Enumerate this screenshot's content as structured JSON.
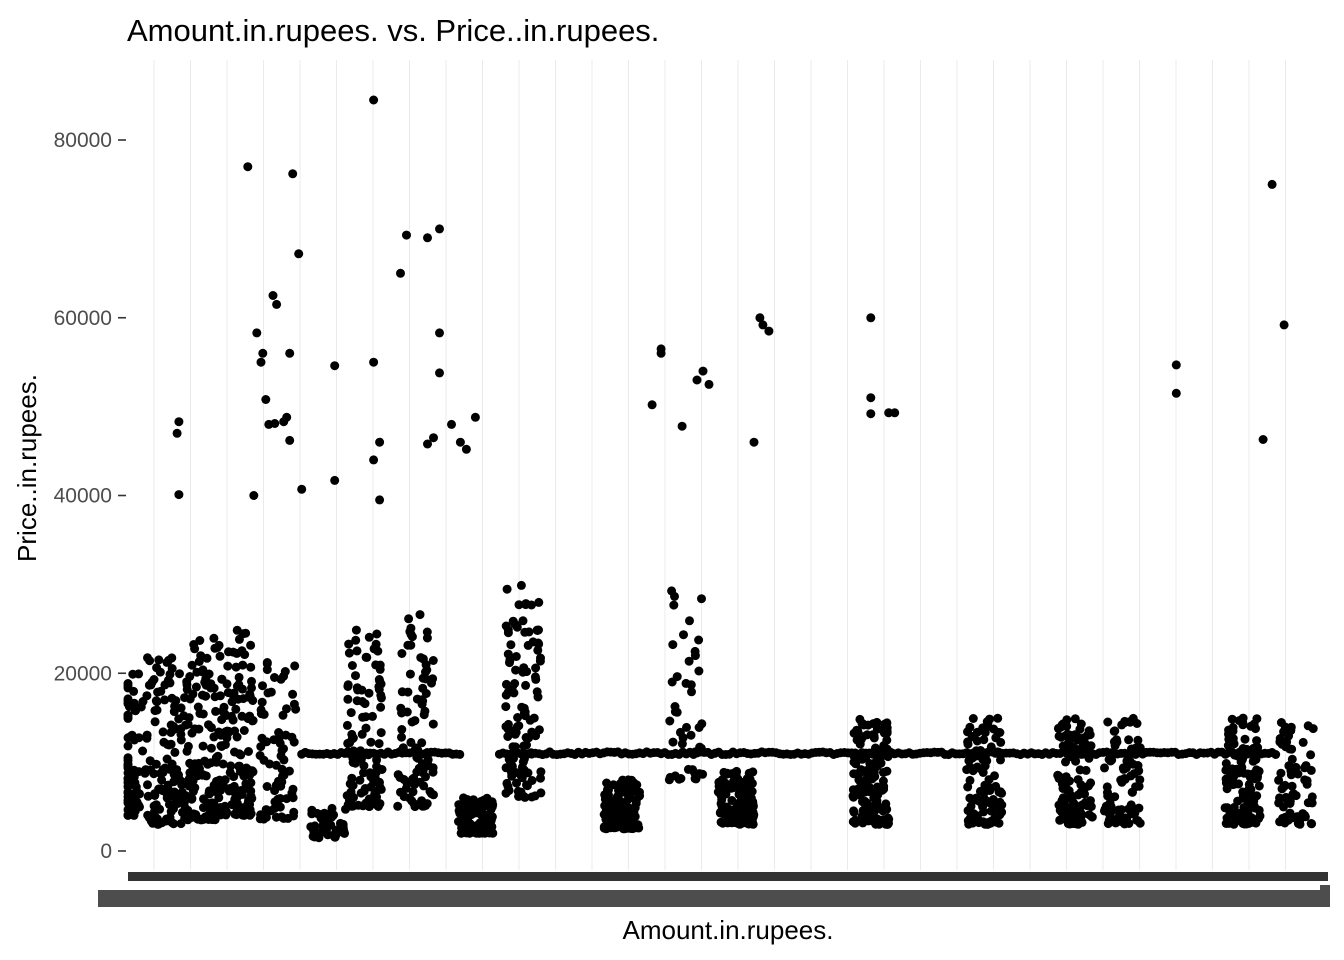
{
  "chart_data": {
    "type": "scatter",
    "title": "Amount.in.rupees. vs. Price..in.rupees.",
    "xlabel": "Amount.in.rupees.",
    "ylabel": "Price..in.rupees.",
    "x_scale": "categorical",
    "ylim": [
      -2500,
      88500
    ],
    "yticks": [
      0,
      20000,
      40000,
      60000,
      80000
    ],
    "ytick_labels": [
      "0",
      "20000",
      "40000",
      "60000",
      "80000"
    ],
    "grid": "vertical major lines only",
    "legend": "none",
    "point_color": "#000000",
    "bulk_points": [
      {
        "x": 0.0,
        "y_min": 4000,
        "y_max": 20000,
        "count": 70
      },
      {
        "x": 0.06,
        "y_min": 3000,
        "y_max": 22000,
        "count": 110
      },
      {
        "x": 0.12,
        "y_min": 3500,
        "y_max": 24000,
        "count": 120
      },
      {
        "x": 0.18,
        "y_min": 4000,
        "y_max": 26000,
        "count": 130
      },
      {
        "x": 0.25,
        "y_min": 3500,
        "y_max": 22000,
        "count": 70
      },
      {
        "x": 0.335,
        "y_min": 1500,
        "y_max": 5000,
        "count": 45
      },
      {
        "x": 0.395,
        "y_min": 5000,
        "y_max": 25000,
        "count": 110
      },
      {
        "x": 0.48,
        "y_min": 5000,
        "y_max": 28000,
        "count": 90
      },
      {
        "x": 0.58,
        "y_min": 2000,
        "y_max": 6000,
        "count": 120
      },
      {
        "x": 0.66,
        "y_min": 6000,
        "y_max": 30000,
        "count": 110
      },
      {
        "x": 0.825,
        "y_min": 2500,
        "y_max": 8000,
        "count": 130
      },
      {
        "x": 0.93,
        "y_min": 8000,
        "y_max": 30000,
        "count": 45
      },
      {
        "x": 1.015,
        "y_min": 3000,
        "y_max": 9000,
        "count": 130
      },
      {
        "x": 1.24,
        "y_min": 3000,
        "y_max": 15000,
        "count": 150
      },
      {
        "x": 1.43,
        "y_min": 3000,
        "y_max": 15000,
        "count": 110
      },
      {
        "x": 1.58,
        "y_min": 3000,
        "y_max": 15000,
        "count": 110
      },
      {
        "x": 1.66,
        "y_min": 3000,
        "y_max": 15000,
        "count": 80
      },
      {
        "x": 1.86,
        "y_min": 3000,
        "y_max": 15000,
        "count": 110
      },
      {
        "x": 1.95,
        "y_min": 3000,
        "y_max": 15000,
        "count": 70
      }
    ],
    "horizontal_band": {
      "y": 11000,
      "x_ranges": [
        [
          0.29,
          0.56
        ],
        [
          0.62,
          1.92
        ]
      ]
    },
    "notable_points": [
      {
        "x": 0.41,
        "y": 84500
      },
      {
        "x": 0.2,
        "y": 77000
      },
      {
        "x": 0.275,
        "y": 76200
      },
      {
        "x": 1.91,
        "y": 75000
      },
      {
        "x": 0.52,
        "y": 70000
      },
      {
        "x": 0.465,
        "y": 69300
      },
      {
        "x": 0.5,
        "y": 69000
      },
      {
        "x": 0.285,
        "y": 67200
      },
      {
        "x": 0.455,
        "y": 65000
      },
      {
        "x": 0.242,
        "y": 62500
      },
      {
        "x": 0.248,
        "y": 61500
      },
      {
        "x": 1.24,
        "y": 60000
      },
      {
        "x": 1.055,
        "y": 60000
      },
      {
        "x": 1.06,
        "y": 59200
      },
      {
        "x": 1.93,
        "y": 59200
      },
      {
        "x": 1.07,
        "y": 58500
      },
      {
        "x": 0.215,
        "y": 58300
      },
      {
        "x": 0.52,
        "y": 58300
      },
      {
        "x": 0.89,
        "y": 56500
      },
      {
        "x": 0.89,
        "y": 56000
      },
      {
        "x": 0.225,
        "y": 56000
      },
      {
        "x": 0.27,
        "y": 56000
      },
      {
        "x": 0.41,
        "y": 55000
      },
      {
        "x": 0.222,
        "y": 55000
      },
      {
        "x": 1.75,
        "y": 54700
      },
      {
        "x": 0.345,
        "y": 54600
      },
      {
        "x": 0.96,
        "y": 54000
      },
      {
        "x": 0.52,
        "y": 53800
      },
      {
        "x": 0.95,
        "y": 53000
      },
      {
        "x": 0.97,
        "y": 52500
      },
      {
        "x": 1.75,
        "y": 51500
      },
      {
        "x": 1.24,
        "y": 51000
      },
      {
        "x": 0.23,
        "y": 50800
      },
      {
        "x": 0.875,
        "y": 50200
      },
      {
        "x": 1.27,
        "y": 49300
      },
      {
        "x": 1.28,
        "y": 49300
      },
      {
        "x": 1.24,
        "y": 49200
      },
      {
        "x": 0.58,
        "y": 48800
      },
      {
        "x": 0.265,
        "y": 48800
      },
      {
        "x": 0.085,
        "y": 48300
      },
      {
        "x": 0.26,
        "y": 48300
      },
      {
        "x": 0.245,
        "y": 48100
      },
      {
        "x": 0.54,
        "y": 48000
      },
      {
        "x": 0.235,
        "y": 48000
      },
      {
        "x": 0.925,
        "y": 47800
      },
      {
        "x": 0.082,
        "y": 47000
      },
      {
        "x": 0.51,
        "y": 46500
      },
      {
        "x": 1.895,
        "y": 46300
      },
      {
        "x": 0.27,
        "y": 46200
      },
      {
        "x": 0.555,
        "y": 46000
      },
      {
        "x": 1.045,
        "y": 46000
      },
      {
        "x": 0.42,
        "y": 46000
      },
      {
        "x": 0.5,
        "y": 45800
      },
      {
        "x": 0.565,
        "y": 45200
      },
      {
        "x": 0.345,
        "y": 41700
      },
      {
        "x": 0.29,
        "y": 40700
      },
      {
        "x": 0.085,
        "y": 40100
      },
      {
        "x": 0.21,
        "y": 40000
      },
      {
        "x": 0.42,
        "y": 39500
      },
      {
        "x": 0.41,
        "y": 44000
      }
    ]
  }
}
